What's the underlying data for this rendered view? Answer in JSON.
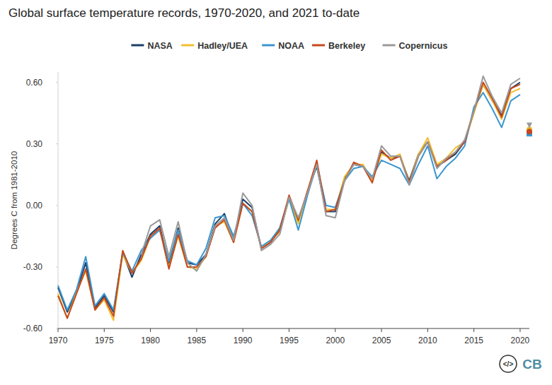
{
  "chart_data": {
    "type": "line",
    "title": "Global surface temperature records, 1970-2020, and 2021 to-date",
    "y_label": "Degrees C from 1981-2010",
    "x": [
      1970,
      1971,
      1972,
      1973,
      1974,
      1975,
      1976,
      1977,
      1978,
      1979,
      1980,
      1981,
      1982,
      1983,
      1984,
      1985,
      1986,
      1987,
      1988,
      1989,
      1990,
      1991,
      1992,
      1993,
      1994,
      1995,
      1996,
      1997,
      1998,
      1999,
      2000,
      2001,
      2002,
      2003,
      2004,
      2005,
      2006,
      2007,
      2008,
      2009,
      2010,
      2011,
      2012,
      2013,
      2014,
      2015,
      2016,
      2017,
      2018,
      2019,
      2020
    ],
    "ytd_x": 2021,
    "series": [
      {
        "name": "NASA",
        "color": "#1c3d66",
        "marker": "diamond",
        "ytd_value": 0.36,
        "values": [
          -0.4,
          -0.52,
          -0.42,
          -0.28,
          -0.5,
          -0.44,
          -0.52,
          -0.23,
          -0.35,
          -0.24,
          -0.14,
          -0.1,
          -0.29,
          -0.11,
          -0.28,
          -0.29,
          -0.24,
          -0.09,
          -0.04,
          -0.17,
          0.03,
          -0.01,
          -0.21,
          -0.18,
          -0.11,
          0.04,
          -0.08,
          0.07,
          0.19,
          -0.03,
          -0.03,
          0.13,
          0.2,
          0.19,
          0.12,
          0.26,
          0.23,
          0.24,
          0.12,
          0.25,
          0.31,
          0.19,
          0.22,
          0.25,
          0.31,
          0.46,
          0.59,
          0.51,
          0.44,
          0.57,
          0.6
        ]
      },
      {
        "name": "Hadley/UEA",
        "color": "#f2bf2f",
        "marker": "circle",
        "ytd_value": 0.37,
        "values": [
          -0.43,
          -0.55,
          -0.42,
          -0.32,
          -0.51,
          -0.46,
          -0.56,
          -0.24,
          -0.33,
          -0.27,
          -0.15,
          -0.12,
          -0.3,
          -0.15,
          -0.3,
          -0.31,
          -0.25,
          -0.1,
          -0.08,
          -0.18,
          0.01,
          -0.03,
          -0.21,
          -0.17,
          -0.13,
          0.03,
          -0.09,
          0.07,
          0.21,
          -0.02,
          -0.02,
          0.14,
          0.2,
          0.2,
          0.12,
          0.25,
          0.23,
          0.25,
          0.11,
          0.25,
          0.33,
          0.2,
          0.23,
          0.28,
          0.31,
          0.45,
          0.59,
          0.51,
          0.42,
          0.55,
          0.57
        ]
      },
      {
        "name": "NOAA",
        "color": "#3b96cf",
        "marker": "square",
        "ytd_value": 0.35,
        "values": [
          -0.39,
          -0.51,
          -0.41,
          -0.25,
          -0.49,
          -0.43,
          -0.51,
          -0.23,
          -0.32,
          -0.22,
          -0.16,
          -0.12,
          -0.27,
          -0.12,
          -0.27,
          -0.29,
          -0.21,
          -0.06,
          -0.05,
          -0.15,
          0.01,
          -0.05,
          -0.2,
          -0.17,
          -0.11,
          0.03,
          -0.12,
          0.05,
          0.2,
          0.0,
          -0.01,
          0.12,
          0.18,
          0.19,
          0.14,
          0.22,
          0.2,
          0.18,
          0.1,
          0.2,
          0.29,
          0.13,
          0.19,
          0.23,
          0.29,
          0.48,
          0.55,
          0.47,
          0.38,
          0.51,
          0.54
        ]
      },
      {
        "name": "Berkeley",
        "color": "#c8481c",
        "marker": "circle",
        "ytd_value": 0.36,
        "values": [
          -0.44,
          -0.55,
          -0.43,
          -0.31,
          -0.51,
          -0.45,
          -0.54,
          -0.22,
          -0.33,
          -0.26,
          -0.15,
          -0.11,
          -0.31,
          -0.14,
          -0.3,
          -0.3,
          -0.25,
          -0.11,
          -0.07,
          -0.18,
          0.01,
          -0.03,
          -0.21,
          -0.18,
          -0.12,
          0.05,
          -0.07,
          0.07,
          0.22,
          -0.03,
          -0.02,
          0.12,
          0.21,
          0.19,
          0.11,
          0.27,
          0.22,
          0.24,
          0.11,
          0.24,
          0.31,
          0.19,
          0.22,
          0.26,
          0.31,
          0.46,
          0.6,
          0.52,
          0.43,
          0.57,
          0.59
        ]
      },
      {
        "name": "Copernicus",
        "color": "#9a9a9a",
        "marker": "triangle",
        "ytd_value": 0.39,
        "values": [
          null,
          null,
          null,
          null,
          null,
          null,
          null,
          null,
          null,
          -0.24,
          -0.1,
          -0.07,
          -0.25,
          -0.08,
          -0.28,
          -0.32,
          -0.24,
          -0.1,
          -0.06,
          -0.17,
          0.06,
          0.0,
          -0.22,
          -0.19,
          -0.14,
          0.04,
          -0.06,
          0.06,
          0.2,
          -0.05,
          -0.06,
          0.12,
          0.2,
          0.19,
          0.13,
          0.29,
          0.24,
          0.24,
          0.1,
          0.24,
          0.31,
          0.18,
          0.23,
          0.26,
          0.32,
          0.46,
          0.63,
          0.53,
          0.45,
          0.59,
          0.62
        ]
      }
    ],
    "xlim": [
      1970,
      2021
    ],
    "xticks": [
      1970,
      1975,
      1980,
      1985,
      1990,
      1995,
      2000,
      2005,
      2010,
      2015,
      2020
    ],
    "ylim": [
      -0.6,
      0.65
    ],
    "yticks": [
      {
        "value": -0.6,
        "label": "-0.60"
      },
      {
        "value": -0.3,
        "label": "-0.30"
      },
      {
        "value": 0,
        "label": "0.00"
      },
      {
        "value": 0.3,
        "label": "0.30"
      },
      {
        "value": 0.6,
        "label": "0.60"
      }
    ],
    "grid": false,
    "legend": "top",
    "annotations": [
      "</>",
      "CB"
    ]
  }
}
